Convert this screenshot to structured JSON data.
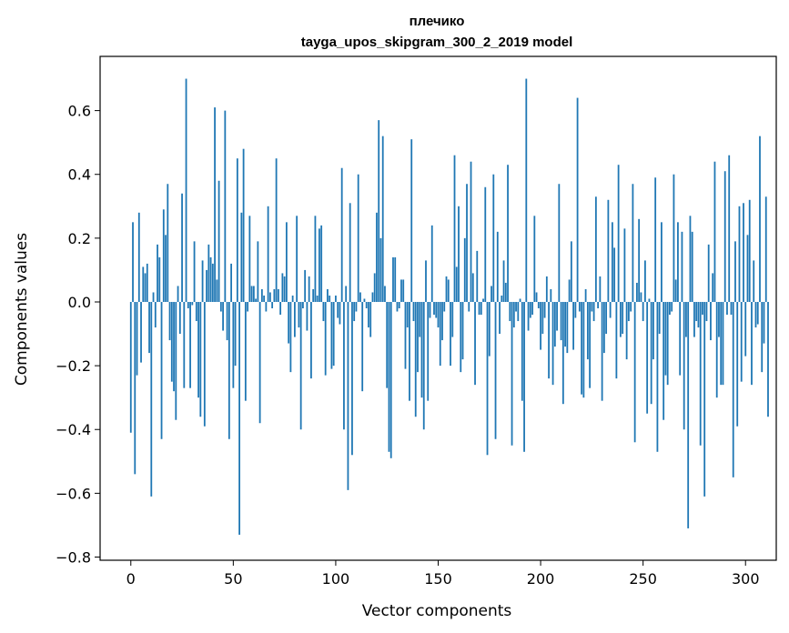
{
  "chart_data": {
    "type": "bar",
    "title_line1": "плечико",
    "title_line2": "tayga_upos_skipgram_300_2_2019 model",
    "xlabel": "Vector components",
    "ylabel": "Components values",
    "xlim": [
      -15,
      315
    ],
    "ylim": [
      -0.81,
      0.77
    ],
    "xticks": [
      0,
      50,
      100,
      150,
      200,
      250,
      300
    ],
    "xtick_labels": [
      "0",
      "50",
      "100",
      "150",
      "200",
      "250",
      "300"
    ],
    "yticks": [
      -0.8,
      -0.6,
      -0.4,
      -0.2,
      0.0,
      0.2,
      0.4,
      0.6
    ],
    "ytick_labels": [
      "−0.8",
      "−0.6",
      "−0.4",
      "−0.2",
      "0.0",
      "0.2",
      "0.4",
      "0.6"
    ],
    "grid": false,
    "bar_color": "#1f77b4",
    "values": [
      -0.41,
      0.25,
      -0.54,
      -0.23,
      0.28,
      -0.19,
      0.11,
      0.09,
      0.12,
      -0.16,
      -0.61,
      0.03,
      -0.08,
      0.18,
      0.14,
      -0.43,
      0.29,
      0.21,
      0.37,
      -0.12,
      -0.25,
      -0.28,
      -0.37,
      0.05,
      -0.1,
      0.34,
      -0.27,
      0.7,
      -0.02,
      -0.27,
      -0.01,
      0.19,
      -0.06,
      -0.3,
      -0.36,
      0.13,
      -0.39,
      0.1,
      0.18,
      0.14,
      0.12,
      0.61,
      0.07,
      0.38,
      -0.03,
      -0.09,
      0.6,
      -0.12,
      -0.43,
      0.12,
      -0.27,
      -0.2,
      0.45,
      -0.73,
      0.28,
      0.48,
      -0.31,
      -0.03,
      0.27,
      0.05,
      0.05,
      0.01,
      0.19,
      -0.38,
      0.04,
      0.02,
      -0.03,
      0.3,
      0.03,
      -0.02,
      0.04,
      0.45,
      0.04,
      -0.04,
      0.09,
      0.08,
      0.25,
      -0.13,
      -0.22,
      0.02,
      -0.11,
      0.27,
      -0.08,
      -0.4,
      -0.02,
      0.1,
      -0.09,
      0.08,
      -0.24,
      0.04,
      0.27,
      0.02,
      0.23,
      0.24,
      -0.06,
      -0.23,
      0.04,
      0.02,
      -0.21,
      -0.2,
      0.02,
      -0.05,
      -0.07,
      0.42,
      -0.4,
      0.05,
      -0.59,
      0.31,
      -0.48,
      -0.06,
      -0.03,
      0.4,
      0.03,
      -0.28,
      0.01,
      -0.02,
      -0.08,
      -0.11,
      0.03,
      0.09,
      0.28,
      0.57,
      0.2,
      0.52,
      0.05,
      -0.27,
      -0.47,
      -0.49,
      0.14,
      0.14,
      -0.03,
      -0.02,
      0.07,
      0.07,
      -0.21,
      -0.08,
      -0.31,
      0.51,
      -0.06,
      -0.36,
      -0.22,
      -0.11,
      -0.3,
      -0.4,
      0.13,
      -0.31,
      -0.05,
      0.24,
      -0.04,
      -0.05,
      -0.08,
      -0.2,
      -0.12,
      -0.03,
      0.08,
      0.07,
      -0.2,
      -0.11,
      0.46,
      0.11,
      0.3,
      -0.22,
      -0.18,
      0.2,
      0.37,
      -0.03,
      0.44,
      0.09,
      -0.26,
      0.16,
      -0.04,
      -0.04,
      0.01,
      0.36,
      -0.48,
      -0.17,
      0.05,
      0.4,
      -0.43,
      0.22,
      -0.1,
      0.02,
      0.13,
      0.06,
      0.43,
      -0.06,
      -0.45,
      -0.08,
      -0.03,
      -0.06,
      0.01,
      -0.31,
      -0.47,
      0.7,
      -0.09,
      -0.05,
      -0.04,
      0.27,
      0.03,
      -0.02,
      -0.15,
      -0.1,
      -0.05,
      0.08,
      -0.24,
      0.04,
      -0.26,
      -0.14,
      -0.09,
      0.37,
      -0.12,
      -0.32,
      -0.14,
      -0.16,
      0.07,
      0.19,
      -0.15,
      -0.05,
      0.64,
      -0.03,
      -0.29,
      -0.3,
      0.04,
      -0.18,
      -0.27,
      -0.03,
      -0.06,
      0.33,
      -0.02,
      0.08,
      -0.31,
      -0.16,
      -0.1,
      0.32,
      -0.05,
      0.25,
      0.17,
      -0.24,
      0.43,
      -0.11,
      -0.1,
      0.23,
      -0.18,
      -0.06,
      -0.03,
      0.37,
      -0.44,
      0.06,
      0.26,
      0.03,
      -0.06,
      0.13,
      -0.35,
      0.01,
      -0.32,
      -0.18,
      0.39,
      -0.47,
      -0.1,
      0.25,
      -0.37,
      -0.23,
      -0.26,
      -0.04,
      -0.03,
      0.4,
      0.07,
      0.25,
      -0.23,
      0.22,
      -0.4,
      -0.11,
      -0.71,
      0.27,
      0.22,
      -0.11,
      -0.06,
      -0.08,
      -0.45,
      -0.04,
      -0.61,
      -0.06,
      0.18,
      -0.12,
      0.09,
      0.44,
      -0.3,
      -0.11,
      -0.26,
      -0.26,
      0.41,
      -0.04,
      0.46,
      -0.04,
      -0.55,
      0.19,
      -0.39,
      0.3,
      -0.25,
      0.31,
      -0.17,
      0.21,
      0.32,
      -0.26,
      0.13,
      -0.08,
      -0.07,
      0.52,
      -0.22,
      -0.13,
      0.33,
      -0.36
    ]
  }
}
